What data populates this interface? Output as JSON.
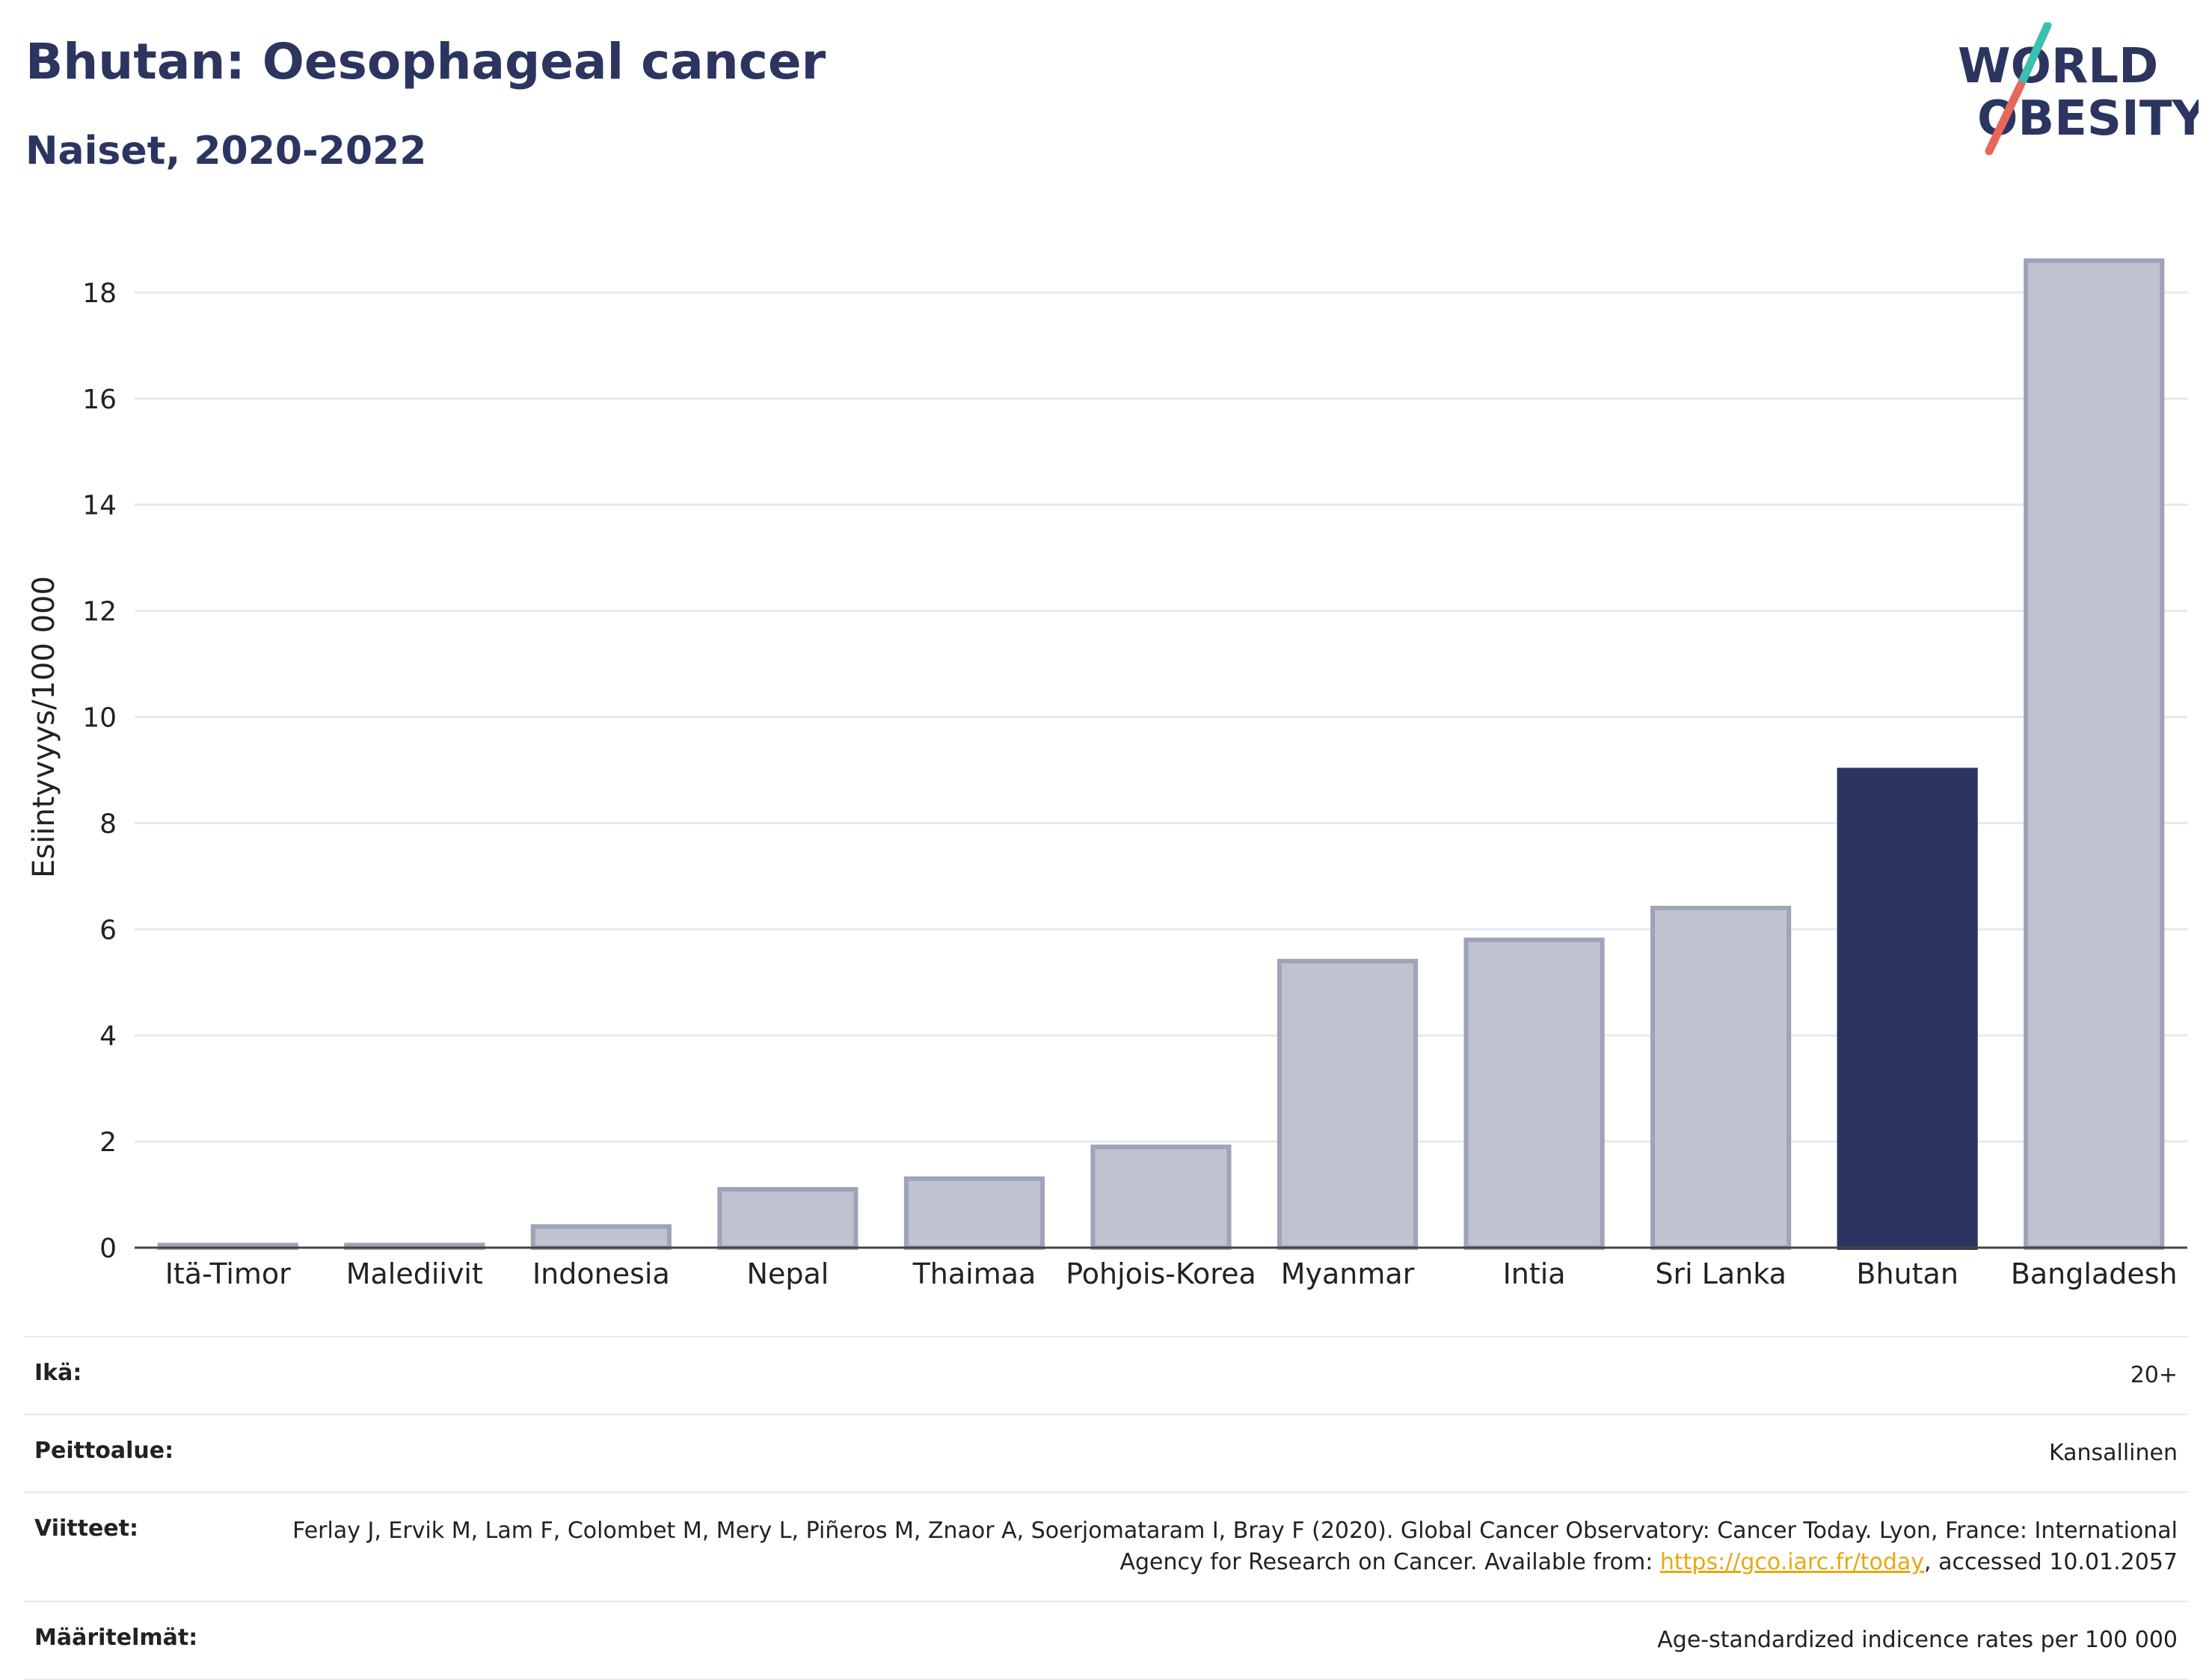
{
  "header": {
    "title": "Bhutan: Oesophageal cancer",
    "subtitle": "Naiset, 2020-2022"
  },
  "logo": {
    "line1": "WORLD",
    "line2": "OBESITY",
    "colors": {
      "text": "#2b3560",
      "slash_top": "#3bbfb1",
      "slash_bottom": "#e8675a"
    }
  },
  "chart_data": {
    "type": "bar",
    "categories": [
      "Itä-Timor",
      "Malediivit",
      "Indonesia",
      "Nepal",
      "Thaimaa",
      "Pohjois-Korea",
      "Myanmar",
      "Intia",
      "Sri Lanka",
      "Bhutan",
      "Bangladesh"
    ],
    "values": [
      0.05,
      0.05,
      0.4,
      1.1,
      1.3,
      1.9,
      5.4,
      5.8,
      6.4,
      9.0,
      18.6
    ],
    "highlight": "Bhutan",
    "ylabel": "Esiintyvyys/100 000",
    "xlabel": "",
    "ylim": [
      0,
      19
    ],
    "yticks": [
      0,
      2,
      4,
      6,
      8,
      10,
      12,
      14,
      16,
      18
    ],
    "grid": true,
    "colors": {
      "bar": "#bfc2cf",
      "bar_edge": "#9ea3b8",
      "highlight": "#2b3560"
    }
  },
  "info": {
    "age_label": "Ikä:",
    "age_value": "20+",
    "coverage_label": "Peittoalue:",
    "coverage_value": "Kansallinen",
    "refs_label": "Viitteet:",
    "refs_text_1": "Ferlay J, Ervik M, Lam F, Colombet M, Mery L, Piñeros M, Znaor A, Soerjomataram I, Bray F (2020). Global Cancer Observatory: Cancer Today. Lyon, France: International Agency for Research on Cancer. Available from: ",
    "refs_link": "https://gco.iarc.fr/today",
    "refs_text_2": ", accessed 10.01.2057",
    "defs_label": "Määritelmät:",
    "defs_value": "Age-standardized indicence rates per 100 000"
  }
}
